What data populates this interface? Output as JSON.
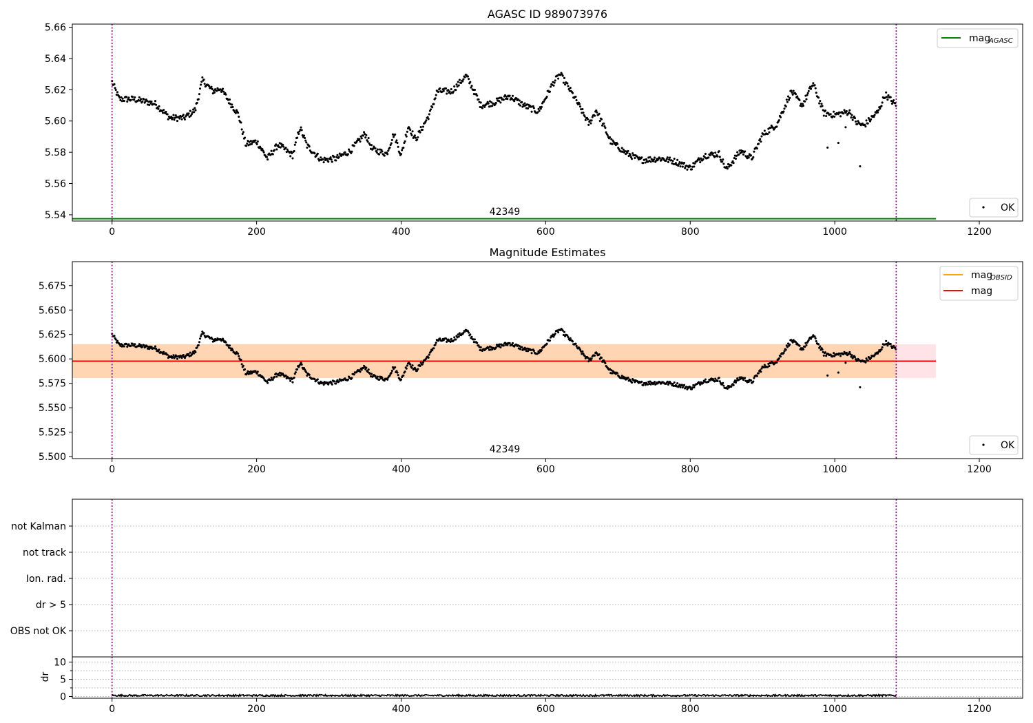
{
  "chart_data": [
    {
      "type": "scatter",
      "title": "AGASC ID 989073976",
      "xlim": [
        -55,
        1260
      ],
      "ylim": [
        5.536,
        5.662
      ],
      "xticks": [
        "0",
        "200",
        "400",
        "600",
        "800",
        "1000",
        "1200"
      ],
      "yticks": [
        "5.54",
        "5.56",
        "5.58",
        "5.60",
        "5.62",
        "5.64",
        "5.66"
      ],
      "obsid_label": "42349",
      "vlines": [
        0,
        1085
      ],
      "hlines": [
        {
          "name": "mag_AGASC",
          "y": 5.5375,
          "x_range": [
            -55,
            1140
          ],
          "color": "#008000"
        }
      ],
      "legend": {
        "upper": {
          "main": "mag",
          "sub": "AGASC"
        },
        "lower": "OK"
      },
      "series": [
        {
          "name": "OK",
          "marker": "point",
          "color": "#000000",
          "generator": "mag-trace"
        }
      ]
    },
    {
      "type": "scatter",
      "title": "Magnitude Estimates",
      "xlim": [
        -55,
        1260
      ],
      "ylim": [
        5.498,
        5.6995
      ],
      "xticks": [
        "0",
        "200",
        "400",
        "600",
        "800",
        "1000",
        "1200"
      ],
      "yticks": [
        "5.500",
        "5.525",
        "5.550",
        "5.575",
        "5.600",
        "5.625",
        "5.650",
        "5.675"
      ],
      "obsid_label": "42349",
      "vlines": [
        0,
        1085
      ],
      "bands": [
        {
          "y": [
            5.5805,
            5.615
          ],
          "x_range": [
            -55,
            1140
          ],
          "color": "#ffb6c1",
          "opacity": 0.38
        },
        {
          "y": [
            5.5805,
            5.615
          ],
          "x_range": [
            -55,
            1085
          ],
          "color": "#ffa500",
          "opacity": 0.22
        }
      ],
      "hlines": [
        {
          "name": "mag_OBSID",
          "y": 5.5977,
          "x_range": [
            -55,
            1085
          ],
          "color": "#ffa500"
        },
        {
          "name": "mag",
          "y": 5.5977,
          "x_range": [
            -55,
            1140
          ],
          "color": "#ff0000"
        }
      ],
      "legend": {
        "upper": [
          {
            "main": "mag",
            "sub": "OBSID",
            "color": "#ffa500"
          },
          {
            "main": "mag",
            "sub": "",
            "color": "#ff0000"
          }
        ],
        "lower": "OK"
      },
      "series": [
        {
          "name": "OK",
          "marker": "point",
          "color": "#000000",
          "generator": "mag-trace"
        }
      ]
    },
    {
      "type": "scatter",
      "title": "",
      "xlim": [
        -55,
        1260
      ],
      "categories": [
        "OBS not OK",
        "dr > 5",
        "Ion. rad.",
        "not track",
        "not Kalman"
      ],
      "vlines": [
        0,
        1085
      ],
      "flag_points": []
    },
    {
      "type": "line",
      "title": "",
      "xlim": [
        -55,
        1260
      ],
      "ylim": [
        -0.5,
        11.5
      ],
      "xticks": [
        "0",
        "200",
        "400",
        "600",
        "800",
        "1000",
        "1200"
      ],
      "yticks": [
        "0",
        "5",
        "10"
      ],
      "ylabel": "dr",
      "vlines": [
        0,
        1085
      ],
      "series": [
        {
          "name": "dr",
          "color": "#000000",
          "range": [
            0.05,
            0.55
          ]
        }
      ]
    }
  ]
}
